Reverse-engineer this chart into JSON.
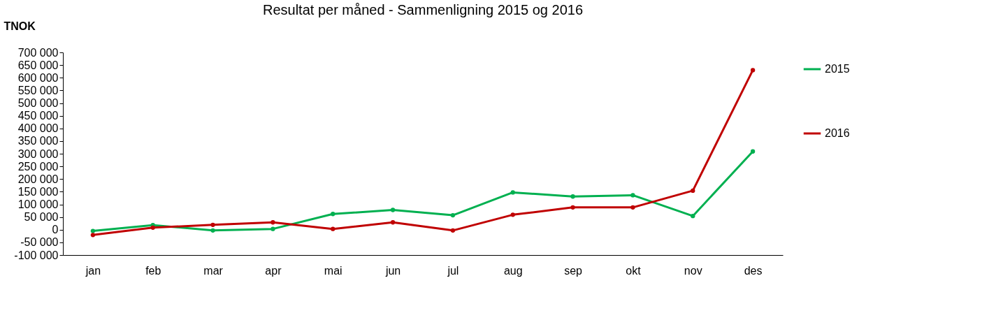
{
  "chart_data": {
    "type": "line",
    "title": "Resultat per måned - Sammenligning 2015 og 2016",
    "ylabel": "TNOK",
    "categories": [
      "jan",
      "feb",
      "mar",
      "apr",
      "mai",
      "jun",
      "jul",
      "aug",
      "sep",
      "okt",
      "nov",
      "des"
    ],
    "series": [
      {
        "name": "2015",
        "color": "#00b050",
        "values": [
          -5000,
          18000,
          -3000,
          3000,
          62000,
          78000,
          57000,
          147000,
          131000,
          136000,
          54000,
          309000
        ]
      },
      {
        "name": "2016",
        "color": "#c00000",
        "values": [
          -21000,
          8000,
          19000,
          29000,
          3000,
          29000,
          -3000,
          59000,
          88000,
          88000,
          154000,
          630000
        ]
      }
    ],
    "ylim": [
      -100000,
      700000
    ],
    "yticks": [
      {
        "value": -100000,
        "label": "-100 000"
      },
      {
        "value": -50000,
        "label": "-50 000"
      },
      0,
      {
        "value": 50000,
        "label": "50 000"
      },
      {
        "value": 100000,
        "label": "100 000"
      },
      {
        "value": 150000,
        "label": "150 000"
      },
      {
        "value": 200000,
        "label": "200 000"
      },
      {
        "value": 250000,
        "label": "250 000"
      },
      {
        "value": 300000,
        "label": "300 000"
      },
      {
        "value": 350000,
        "label": "350 000"
      },
      {
        "value": 400000,
        "label": "400 000"
      },
      {
        "value": 450000,
        "label": "450 000"
      },
      {
        "value": 500000,
        "label": "500 000"
      },
      {
        "value": 550000,
        "label": "550 000"
      },
      {
        "value": 600000,
        "label": "600 000"
      },
      {
        "value": 650000,
        "label": "650 000"
      },
      {
        "value": 700000,
        "label": "700 000"
      }
    ],
    "grid": false,
    "legend": "right",
    "marker": "circle",
    "line_style": "solid"
  }
}
